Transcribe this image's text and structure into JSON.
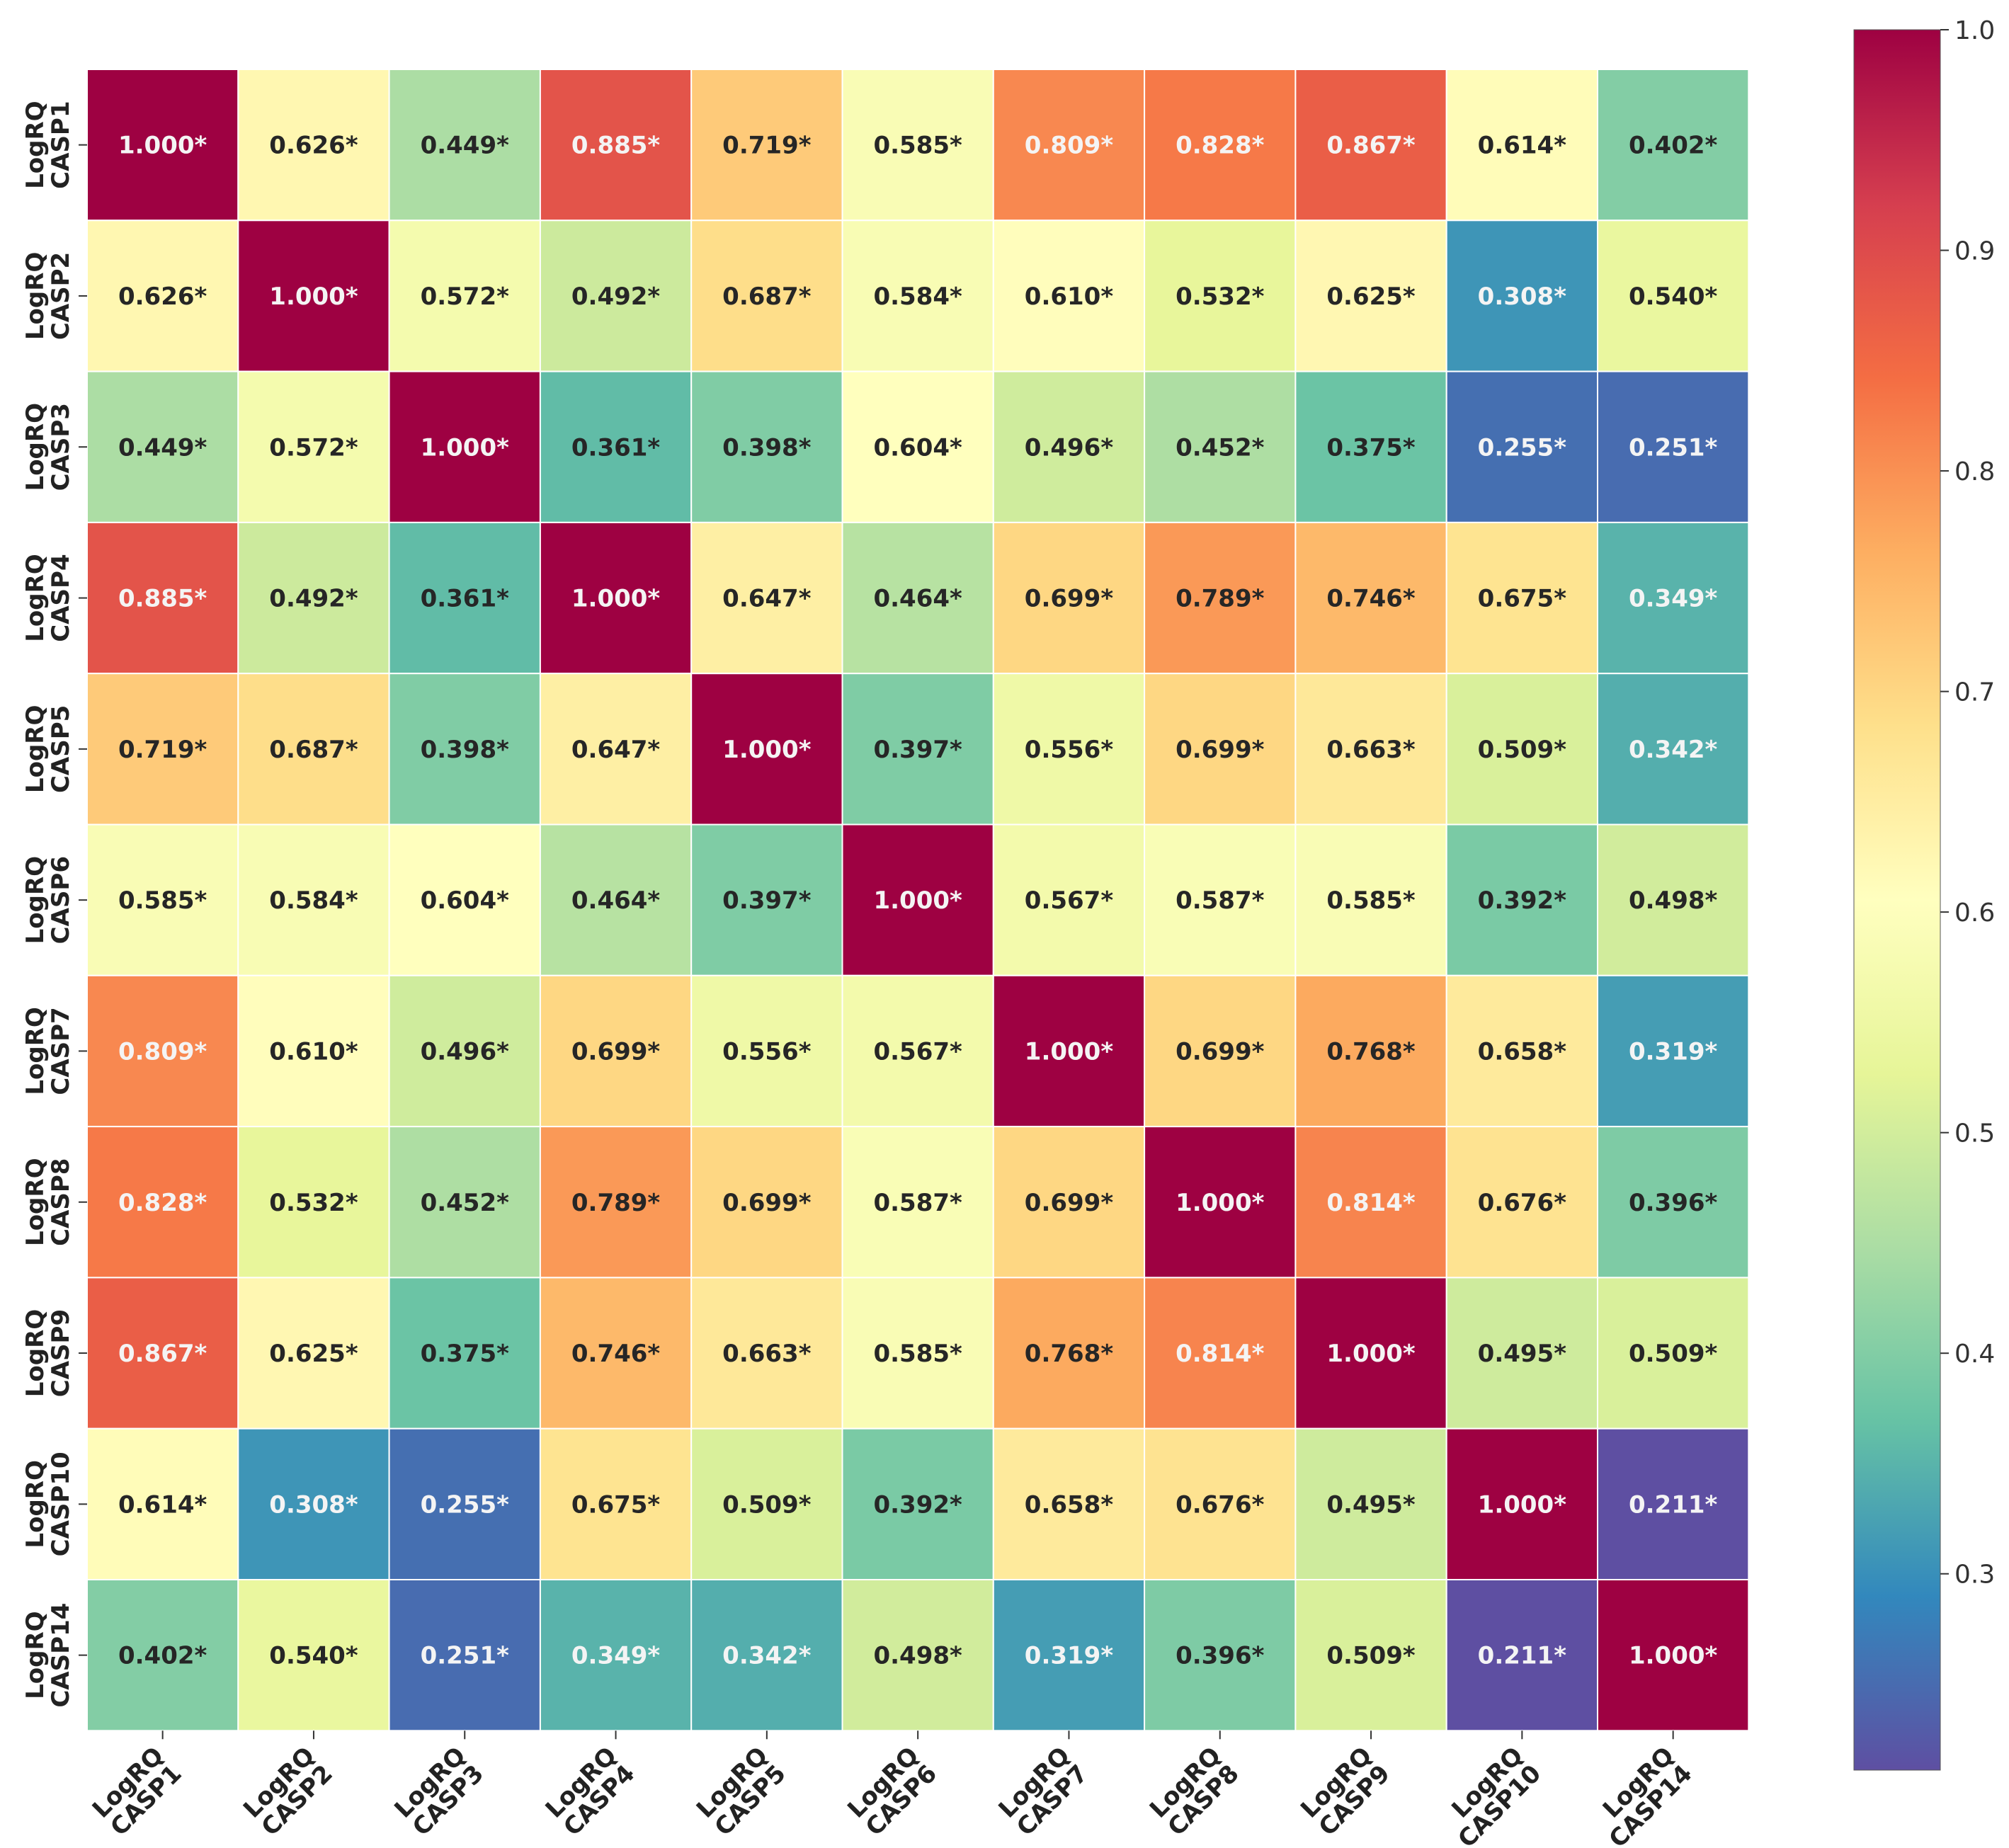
{
  "chart_data": {
    "type": "heatmap",
    "title": "",
    "xlabel": "",
    "ylabel": "",
    "labels": [
      [
        "LogRQ",
        "CASP1"
      ],
      [
        "LogRQ",
        "CASP2"
      ],
      [
        "LogRQ",
        "CASP3"
      ],
      [
        "LogRQ",
        "CASP4"
      ],
      [
        "LogRQ",
        "CASP5"
      ],
      [
        "LogRQ",
        "CASP6"
      ],
      [
        "LogRQ",
        "CASP7"
      ],
      [
        "LogRQ",
        "CASP8"
      ],
      [
        "LogRQ",
        "CASP9"
      ],
      [
        "LogRQ",
        "CASP10"
      ],
      [
        "LogRQ",
        "CASP14"
      ]
    ],
    "values": [
      [
        1.0,
        0.626,
        0.449,
        0.885,
        0.719,
        0.585,
        0.809,
        0.828,
        0.867,
        0.614,
        0.402
      ],
      [
        0.626,
        1.0,
        0.572,
        0.492,
        0.687,
        0.584,
        0.61,
        0.532,
        0.625,
        0.308,
        0.54
      ],
      [
        0.449,
        0.572,
        1.0,
        0.361,
        0.398,
        0.604,
        0.496,
        0.452,
        0.375,
        0.255,
        0.251
      ],
      [
        0.885,
        0.492,
        0.361,
        1.0,
        0.647,
        0.464,
        0.699,
        0.789,
        0.746,
        0.675,
        0.349
      ],
      [
        0.719,
        0.687,
        0.398,
        0.647,
        1.0,
        0.397,
        0.556,
        0.699,
        0.663,
        0.509,
        0.342
      ],
      [
        0.585,
        0.584,
        0.604,
        0.464,
        0.397,
        1.0,
        0.567,
        0.587,
        0.585,
        0.392,
        0.498
      ],
      [
        0.809,
        0.61,
        0.496,
        0.699,
        0.556,
        0.567,
        1.0,
        0.699,
        0.768,
        0.658,
        0.319
      ],
      [
        0.828,
        0.532,
        0.452,
        0.789,
        0.699,
        0.587,
        0.699,
        1.0,
        0.814,
        0.676,
        0.396
      ],
      [
        0.867,
        0.625,
        0.375,
        0.746,
        0.663,
        0.585,
        0.768,
        0.814,
        1.0,
        0.495,
        0.509
      ],
      [
        0.614,
        0.308,
        0.255,
        0.675,
        0.509,
        0.392,
        0.658,
        0.676,
        0.495,
        1.0,
        0.211
      ],
      [
        0.402,
        0.54,
        0.251,
        0.349,
        0.342,
        0.498,
        0.319,
        0.396,
        0.509,
        0.211,
        1.0
      ]
    ],
    "annotation_suffix": "*",
    "colormap": "Spectral_r",
    "vmin": 0.211,
    "vmax": 1.0,
    "colorbar_ticks": [
      "1.0",
      "0.9",
      "0.8",
      "0.7",
      "0.6",
      "0.5",
      "0.4",
      "0.3"
    ],
    "colorbar_tick_values": [
      1.0,
      0.9,
      0.8,
      0.7,
      0.6,
      0.5,
      0.4,
      0.3
    ]
  }
}
